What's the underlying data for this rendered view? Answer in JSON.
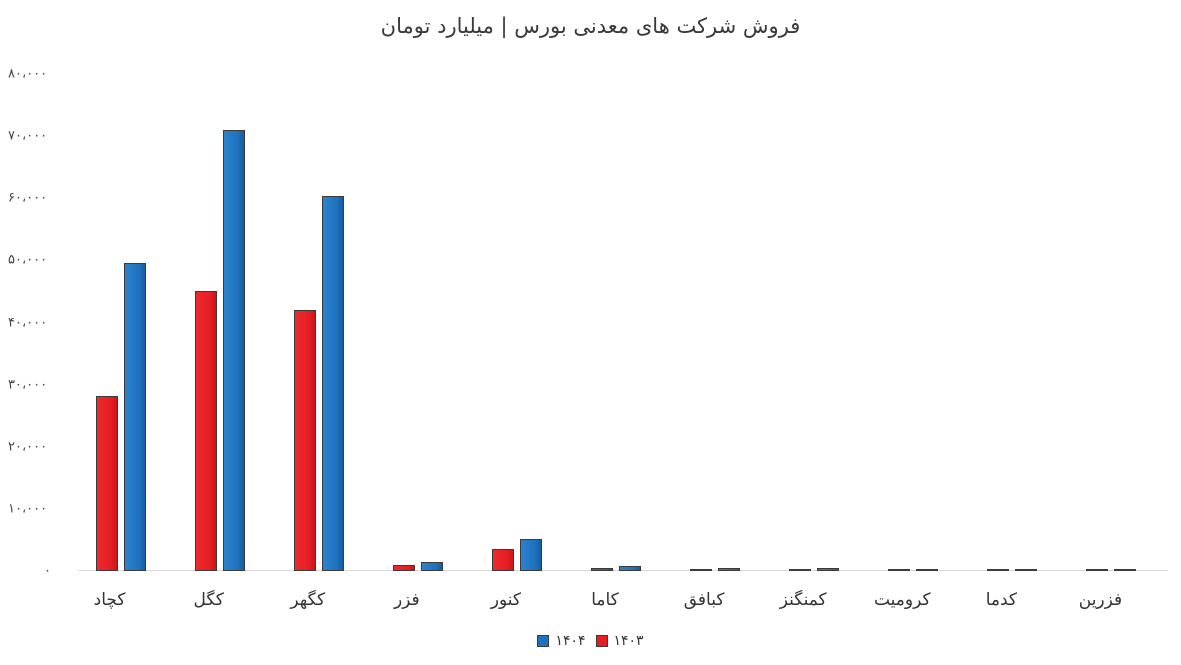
{
  "chart_data": {
    "type": "bar",
    "title": "فروش شرکت های معدنی بورس | میلیارد تومان",
    "xlabel": "",
    "ylabel": "",
    "ylim": [
      0,
      80000
    ],
    "yticks": [
      "۰",
      "۱۰،۰۰۰",
      "۲۰،۰۰۰",
      "۳۰،۰۰۰",
      "۴۰،۰۰۰",
      "۵۰،۰۰۰",
      "۶۰،۰۰۰",
      "۷۰،۰۰۰",
      "۸۰،۰۰۰"
    ],
    "ytick_values": [
      0,
      10000,
      20000,
      30000,
      40000,
      50000,
      60000,
      70000,
      80000
    ],
    "grid": false,
    "legend_position": "bottom",
    "categories": [
      "کچاد",
      "کگل",
      "کگهر",
      "فزر",
      "کنور",
      "کاما",
      "کبافق",
      "کمنگنز",
      "کرومیت",
      "کدما",
      "فزرین"
    ],
    "series": [
      {
        "name": "۱۴۰۳",
        "color": "#e51e24",
        "values": [
          28200,
          45100,
          42000,
          1000,
          3500,
          500,
          200,
          250,
          150,
          150,
          300
        ]
      },
      {
        "name": "۱۴۰۴",
        "color": "#1f72bd",
        "values": [
          49600,
          71000,
          60400,
          1450,
          5200,
          850,
          450,
          450,
          150,
          150,
          250
        ]
      }
    ]
  }
}
